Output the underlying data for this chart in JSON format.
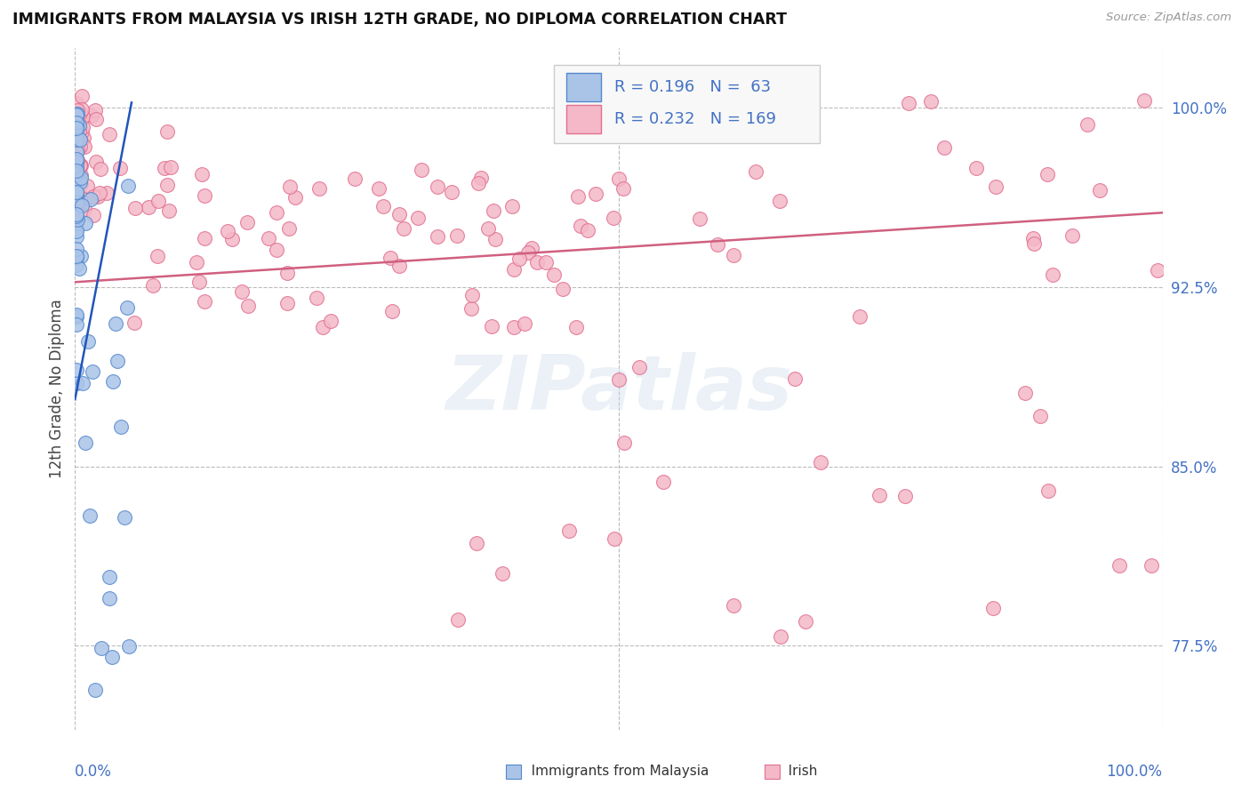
{
  "title": "IMMIGRANTS FROM MALAYSIA VS IRISH 12TH GRADE, NO DIPLOMA CORRELATION CHART",
  "source": "Source: ZipAtlas.com",
  "ylabel": "12th Grade, No Diploma",
  "r_malaysia": 0.196,
  "n_malaysia": 63,
  "r_irish": 0.232,
  "n_irish": 169,
  "malaysia_color": "#aac4e8",
  "irish_color": "#f4b8c8",
  "malaysia_edge": "#5588cc",
  "irish_edge": "#e07090",
  "trend_malaysia_color": "#2255bb",
  "trend_irish_color": "#d06080",
  "background_color": "#ffffff",
  "grid_color": "#bbbbbb",
  "title_color": "#111111",
  "axis_label_color": "#4472c4",
  "r_value_color": "#4472c4",
  "watermark_color": "#c8d8e8",
  "watermark_alpha": 0.35,
  "xlim": [
    0.0,
    1.0
  ],
  "ylim": [
    0.74,
    1.025
  ],
  "yticks": [
    1.0,
    0.925,
    0.85,
    0.775
  ],
  "ytick_labels": [
    "100.0%",
    "92.5%",
    "85.0%",
    "77.5%"
  ]
}
